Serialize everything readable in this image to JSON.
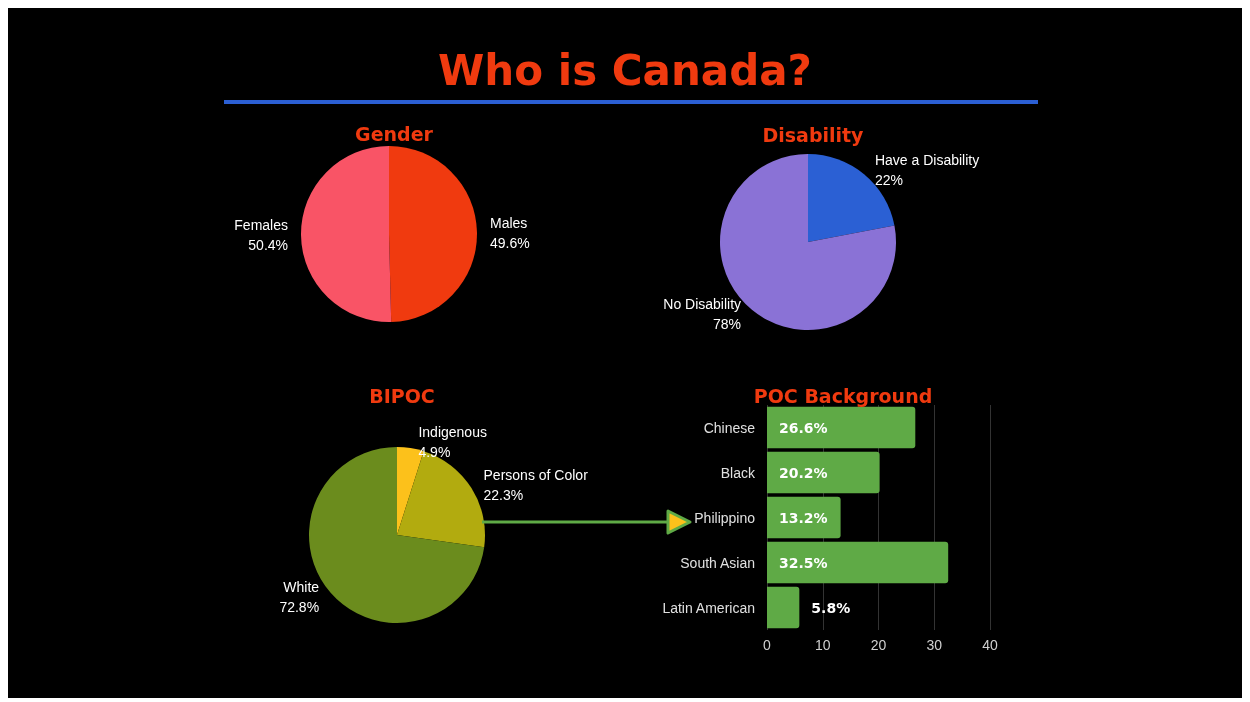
{
  "chart_data": [
    {
      "type": "pie",
      "title": "Gender",
      "annotations": [
        "Who is Canada?"
      ],
      "categories": [
        "Males",
        "Females"
      ],
      "values": [
        49.6,
        50.4
      ],
      "value_labels": [
        "49.6%",
        "50.4%"
      ],
      "colors": [
        "#f03a0f",
        "#f95466"
      ]
    },
    {
      "type": "pie",
      "title": "Disability",
      "categories": [
        "Have a Disability",
        "No Disability"
      ],
      "values": [
        22,
        78
      ],
      "value_labels": [
        "22%",
        "78%"
      ],
      "colors": [
        "#2b60d4",
        "#8a72d6"
      ]
    },
    {
      "type": "pie",
      "title": "BIPOC",
      "categories": [
        "Indigenous",
        "Persons of Color",
        "White"
      ],
      "values": [
        4.9,
        22.3,
        72.8
      ],
      "value_labels": [
        "4.9%",
        "22.3%",
        "72.8%"
      ],
      "colors": [
        "#fcc11b",
        "#b2ab0f",
        "#6b8c1d"
      ]
    },
    {
      "type": "bar",
      "orientation": "horizontal",
      "title": "POC Background",
      "categories": [
        "Chinese",
        "Black",
        "Philippino",
        "South Asian",
        "Latin American"
      ],
      "values": [
        26.6,
        20.2,
        13.2,
        32.5,
        5.8
      ],
      "value_labels": [
        "26.6%",
        "20.2%",
        "13.2%",
        "32.5%",
        "5.8%"
      ],
      "color": "#5faa46",
      "xlim": [
        0,
        40
      ],
      "xticks": [
        0,
        10,
        20,
        30,
        40
      ],
      "grid": "x"
    }
  ]
}
